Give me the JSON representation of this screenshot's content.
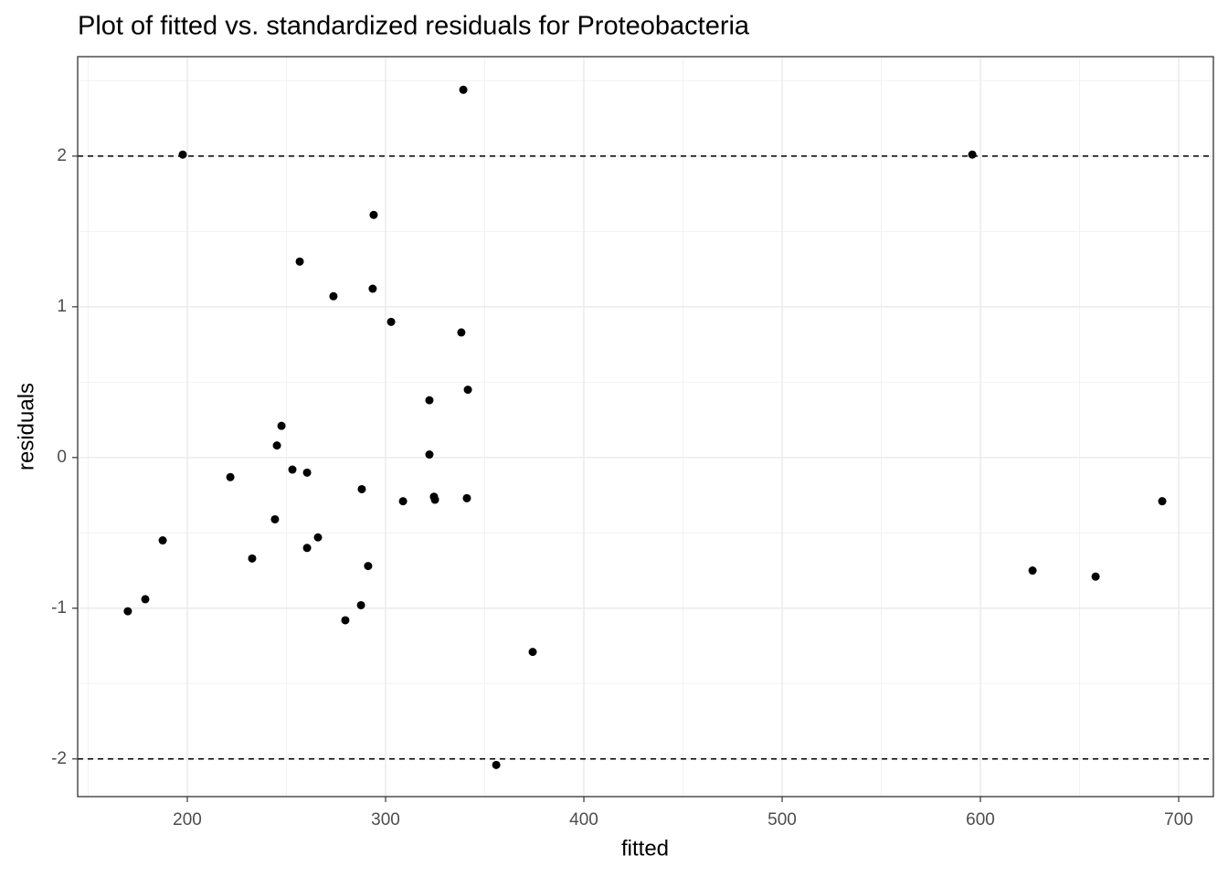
{
  "chart_data": {
    "type": "scatter",
    "title": "Plot of fitted vs. standardized residuals for Proteobacteria",
    "x_label": "fitted",
    "y_label": "residuals",
    "x": [
      170.0,
      178.8,
      187.6,
      197.7,
      221.7,
      232.7,
      244.2,
      245.2,
      247.5,
      253.0,
      256.7,
      260.4,
      260.4,
      265.9,
      273.7,
      279.7,
      287.6,
      288.0,
      291.2,
      293.5,
      294.0,
      302.8,
      308.8,
      322.1,
      322.1,
      324.4,
      324.9,
      338.2,
      339.2,
      341.0,
      341.5,
      355.8,
      374.2,
      595.9,
      626.3,
      658.1,
      691.7
    ],
    "values": [
      -1.02,
      -0.94,
      -0.55,
      2.01,
      -0.13,
      -0.67,
      -0.41,
      0.08,
      0.21,
      -0.08,
      1.3,
      -0.1,
      -0.6,
      -0.53,
      1.07,
      -1.08,
      -0.98,
      -0.21,
      -0.72,
      1.12,
      1.61,
      0.9,
      -0.29,
      0.38,
      0.02,
      -0.26,
      -0.28,
      0.83,
      2.44,
      -0.27,
      0.45,
      -2.04,
      -1.29,
      2.01,
      -0.75,
      -0.79,
      -0.29
    ],
    "color": "#000000",
    "xlim": [
      144.7,
      717.5
    ],
    "ylim": [
      -2.25,
      2.66
    ],
    "xticks": [
      200,
      300,
      400,
      500,
      600,
      700
    ],
    "yticks": [
      -2,
      -1,
      0,
      1,
      2
    ],
    "x_minor_ticks": [
      150,
      250,
      350,
      450,
      550,
      650
    ],
    "y_minor_ticks": [
      -1.5,
      -0.5,
      0.5,
      1.5,
      2.5
    ],
    "hlines": [
      2,
      -2
    ],
    "grid": true
  }
}
